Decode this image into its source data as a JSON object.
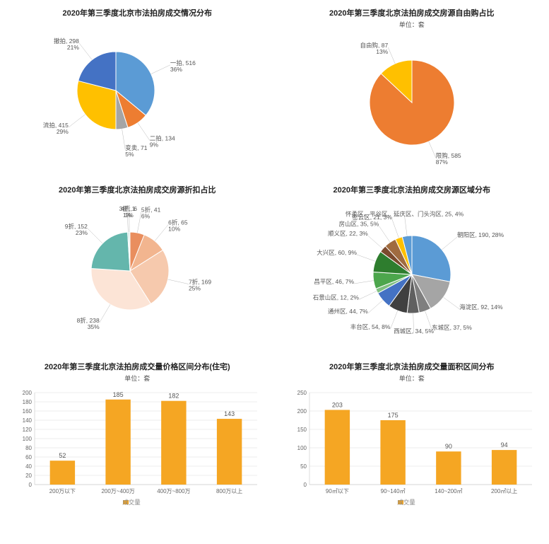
{
  "chart1": {
    "type": "pie",
    "title": "2020年第三季度北京市法拍房成交情况分布",
    "slices": [
      {
        "label": "一拍, 516, 36%",
        "value": 36,
        "color": "#5b9bd5"
      },
      {
        "label": "二拍, 134, 9%",
        "value": 9,
        "color": "#ed7d31"
      },
      {
        "label": "变卖, 71, 5%",
        "value": 5,
        "color": "#a5a5a5"
      },
      {
        "label": "流拍, 415, 29%",
        "value": 29,
        "color": "#ffc000"
      },
      {
        "label": "撤拍, 298, 21%",
        "value": 21,
        "color": "#4472c4"
      }
    ],
    "background": "#ffffff",
    "radius": 55
  },
  "chart2": {
    "type": "pie",
    "title": "2020年第三季度北京法拍房成交房源自由购占比",
    "subtitle": "单位：套",
    "slices": [
      {
        "label": "限购, 585, 87%",
        "value": 87,
        "color": "#ed7d31"
      },
      {
        "label": "自由购, 87, 13%",
        "value": 13,
        "color": "#ffc000"
      }
    ],
    "background": "#ffffff",
    "radius": 60
  },
  "chart3": {
    "type": "pie",
    "title": "2020年第三季度北京法拍房成交房源折扣占比",
    "slices": [
      {
        "label": "5折, 41, 6%",
        "value": 6,
        "color": "#e98e5e"
      },
      {
        "label": "6折, 65, 10%",
        "value": 10,
        "color": "#f2b58f"
      },
      {
        "label": "7折, 169, 25%",
        "value": 25,
        "color": "#f6c9ad"
      },
      {
        "label": "8折, 238, 35%",
        "value": 35,
        "color": "#fce4d6"
      },
      {
        "label": "9折, 152, 23%",
        "value": 23,
        "color": "#64b6ac"
      },
      {
        "label": "3折, 1, 1%",
        "value": 0.5,
        "color": "#9bd5cc"
      },
      {
        "label": "4折, 6, 1%",
        "value": 0.5,
        "color": "#c9e7e2"
      }
    ],
    "background": "#ffffff",
    "radius": 55
  },
  "chart4": {
    "type": "pie",
    "title": "2020年第三季度北京法拍房成交房源区域分布",
    "slices": [
      {
        "label": "朝阳区, 190, 28%",
        "value": 28,
        "color": "#5b9bd5"
      },
      {
        "label": "海淀区, 92, 14%",
        "value": 14,
        "color": "#a5a5a5"
      },
      {
        "label": "东城区, 37, 5%",
        "value": 5,
        "color": "#7f7f7f"
      },
      {
        "label": "西城区, 34, 5%",
        "value": 5,
        "color": "#606060"
      },
      {
        "label": "丰台区, 54, 8%",
        "value": 8,
        "color": "#404040"
      },
      {
        "label": "通州区, 44, 7%",
        "value": 7,
        "color": "#4472c4"
      },
      {
        "label": "石景山区, 12, 2%",
        "value": 2,
        "color": "#7fbf7f"
      },
      {
        "label": "昌平区, 46, 7%",
        "value": 7,
        "color": "#4ca64c"
      },
      {
        "label": "大兴区, 60, 9%",
        "value": 9,
        "color": "#2e7d2e"
      },
      {
        "label": "顺义区, 22, 3%",
        "value": 3,
        "color": "#7c4a2d"
      },
      {
        "label": "房山区, 35, 5%",
        "value": 5,
        "color": "#a06b3f"
      },
      {
        "label": "密云区, 21, 3%",
        "value": 3,
        "color": "#ffc000"
      },
      {
        "label": "怀柔区、平谷区、延庆区、门头沟区, 25, 4%",
        "value": 4,
        "color": "#5b9bd5"
      }
    ],
    "background": "#ffffff",
    "radius": 55
  },
  "chart5": {
    "type": "bar",
    "title": "2020年第三季度北京法拍房成交量价格区间分布(住宅)",
    "subtitle": "单位：套",
    "categories": [
      "200万以下",
      "200万~400万",
      "400万~800万",
      "800万以上"
    ],
    "values": [
      52,
      185,
      182,
      143
    ],
    "bar_color": "#f5a623",
    "grid_color": "#dddddd",
    "ylim": [
      0,
      200
    ],
    "ytick_step": 20,
    "legend": "成交量",
    "bar_width": 0.45
  },
  "chart6": {
    "type": "bar",
    "title": "2020年第三季度北京法拍房成交量面积区间分布",
    "subtitle": "单位：套",
    "categories": [
      "90㎡以下",
      "90~140㎡",
      "140~200㎡",
      "200㎡以上"
    ],
    "values": [
      203,
      175,
      90,
      94
    ],
    "bar_color": "#f5a623",
    "grid_color": "#dddddd",
    "ylim": [
      0,
      250
    ],
    "ytick_step": 50,
    "legend": "成交量",
    "bar_width": 0.45
  }
}
